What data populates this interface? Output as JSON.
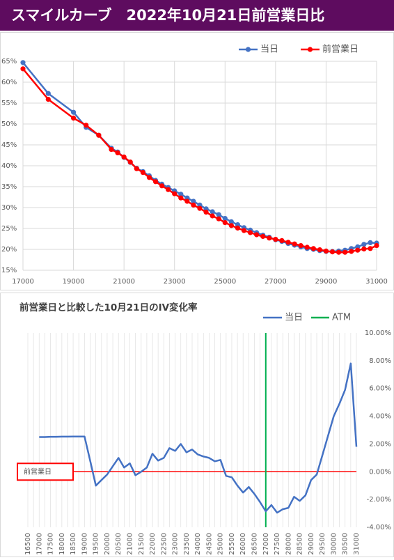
{
  "header": {
    "title": "スマイルカーブ　2022年10月21日前営業日比"
  },
  "chart_data": [
    {
      "type": "line",
      "x": [
        17000,
        18000,
        19000,
        19500,
        20000,
        20500,
        20750,
        21000,
        21250,
        21500,
        21750,
        22000,
        22250,
        22500,
        22750,
        23000,
        23250,
        23500,
        23750,
        24000,
        24250,
        24500,
        24750,
        25000,
        25250,
        25500,
        25750,
        26000,
        26250,
        26500,
        26750,
        27000,
        27250,
        27500,
        27750,
        28000,
        28250,
        28500,
        28750,
        29000,
        29250,
        29500,
        29750,
        30000,
        30250,
        30500,
        30750,
        31000
      ],
      "series": [
        {
          "name": "当日",
          "color": "#4472c4",
          "values": [
            64.7,
            57.3,
            52.8,
            49.2,
            47.3,
            44.2,
            43.3,
            42.0,
            40.8,
            39.4,
            38.6,
            37.6,
            36.5,
            35.6,
            34.8,
            34.0,
            33.2,
            32.3,
            31.5,
            30.6,
            29.7,
            29.0,
            28.3,
            27.4,
            26.6,
            25.9,
            25.2,
            24.6,
            24.0,
            23.4,
            22.9,
            22.3,
            21.9,
            21.4,
            21.0,
            20.6,
            20.2,
            20.0,
            19.7,
            19.5,
            19.5,
            19.6,
            19.8,
            20.2,
            20.6,
            21.2,
            21.6,
            21.5
          ]
        },
        {
          "name": "前営業日",
          "color": "#ff0000",
          "values": [
            63.2,
            55.9,
            51.4,
            49.7,
            47.3,
            43.9,
            43.1,
            42.1,
            40.9,
            39.3,
            38.4,
            37.2,
            36.2,
            35.2,
            34.3,
            33.3,
            32.3,
            31.5,
            30.6,
            29.8,
            28.9,
            28.0,
            27.3,
            26.4,
            25.7,
            25.1,
            24.5,
            24.0,
            23.5,
            23.1,
            22.7,
            22.4,
            22.1,
            21.7,
            21.3,
            20.9,
            20.5,
            20.2,
            19.9,
            19.6,
            19.4,
            19.3,
            19.3,
            19.5,
            19.8,
            20.1,
            20.2,
            20.9
          ]
        }
      ],
      "xlim": [
        17000,
        31000
      ],
      "xticks": [
        17000,
        19000,
        21000,
        23000,
        25000,
        27000,
        29000,
        31000
      ],
      "ylim": [
        15,
        65
      ],
      "yticks": [
        {
          "value": 15,
          "label": "15%"
        },
        {
          "value": 20,
          "label": "20%"
        },
        {
          "value": 25,
          "label": "25%"
        },
        {
          "value": 30,
          "label": "30%"
        },
        {
          "value": 35,
          "label": "35%"
        },
        {
          "value": 40,
          "label": "40%"
        },
        {
          "value": 45,
          "label": "45%"
        },
        {
          "value": 50,
          "label": "50%"
        },
        {
          "value": 55,
          "label": "55%"
        },
        {
          "value": 60,
          "label": "60%"
        },
        {
          "value": 65,
          "label": "65%"
        }
      ],
      "grid": true,
      "markers": true,
      "legend": "top-right"
    },
    {
      "type": "line",
      "title": "前営業日と比較した10月21日のIV変化率",
      "categories": [
        "16500",
        null,
        "17000",
        null,
        "17500",
        null,
        "18000",
        null,
        "18500",
        null,
        "19000",
        null,
        "19500",
        null,
        "20000",
        null,
        "20500",
        null,
        "21000",
        null,
        "21500",
        null,
        "22000",
        null,
        "22500",
        null,
        "23000",
        null,
        "23500",
        null,
        "24000",
        null,
        "24500",
        null,
        "25000",
        null,
        "25500",
        null,
        "26000",
        null,
        "26500",
        null,
        "27000",
        null,
        "27500",
        null,
        "28000",
        null,
        "28500",
        null,
        "29000",
        null,
        "29500",
        null,
        "30000",
        null,
        "30500",
        null,
        "31000"
      ],
      "series": [
        {
          "name": "当日",
          "color": "#4472c4",
          "axis": "y2",
          "values": [
            null,
            null,
            2.5,
            2.5,
            2.52,
            2.52,
            2.53,
            2.53,
            2.54,
            2.54,
            2.54,
            0.8,
            -1.0,
            -0.6,
            -0.2,
            0.4,
            1.0,
            0.3,
            0.6,
            -0.25,
            0.0,
            0.3,
            1.3,
            0.8,
            1.0,
            1.7,
            1.5,
            2.0,
            1.4,
            1.6,
            1.25,
            1.1,
            1.0,
            0.75,
            0.85,
            -0.3,
            -0.4,
            -1.0,
            -1.5,
            -1.1,
            -1.6,
            -2.2,
            -2.85,
            -2.4,
            -2.95,
            -2.7,
            -2.6,
            -1.8,
            -2.1,
            -1.7,
            -0.6,
            -0.2,
            1.2,
            2.6,
            4.0,
            4.9,
            5.9,
            7.8,
            1.8
          ]
        }
      ],
      "atm": {
        "name": "ATM",
        "category": "27000",
        "color": "#00b050"
      },
      "reference": {
        "text": "前営業日",
        "value": 0,
        "color": "#ff0000"
      },
      "y2lim": [
        -4,
        10
      ],
      "y2ticks": [
        {
          "value": -4,
          "label": "-4.00%"
        },
        {
          "value": -2,
          "label": "-2.00%"
        },
        {
          "value": 0,
          "label": "0.00%"
        },
        {
          "value": 2,
          "label": "2.00%"
        },
        {
          "value": 4,
          "label": "4.00%"
        },
        {
          "value": 6,
          "label": "6.00%"
        },
        {
          "value": 8,
          "label": "8.00%"
        },
        {
          "value": 10,
          "label": "10.00%"
        }
      ],
      "grid": true,
      "markers": false,
      "legend": "top-right"
    }
  ]
}
